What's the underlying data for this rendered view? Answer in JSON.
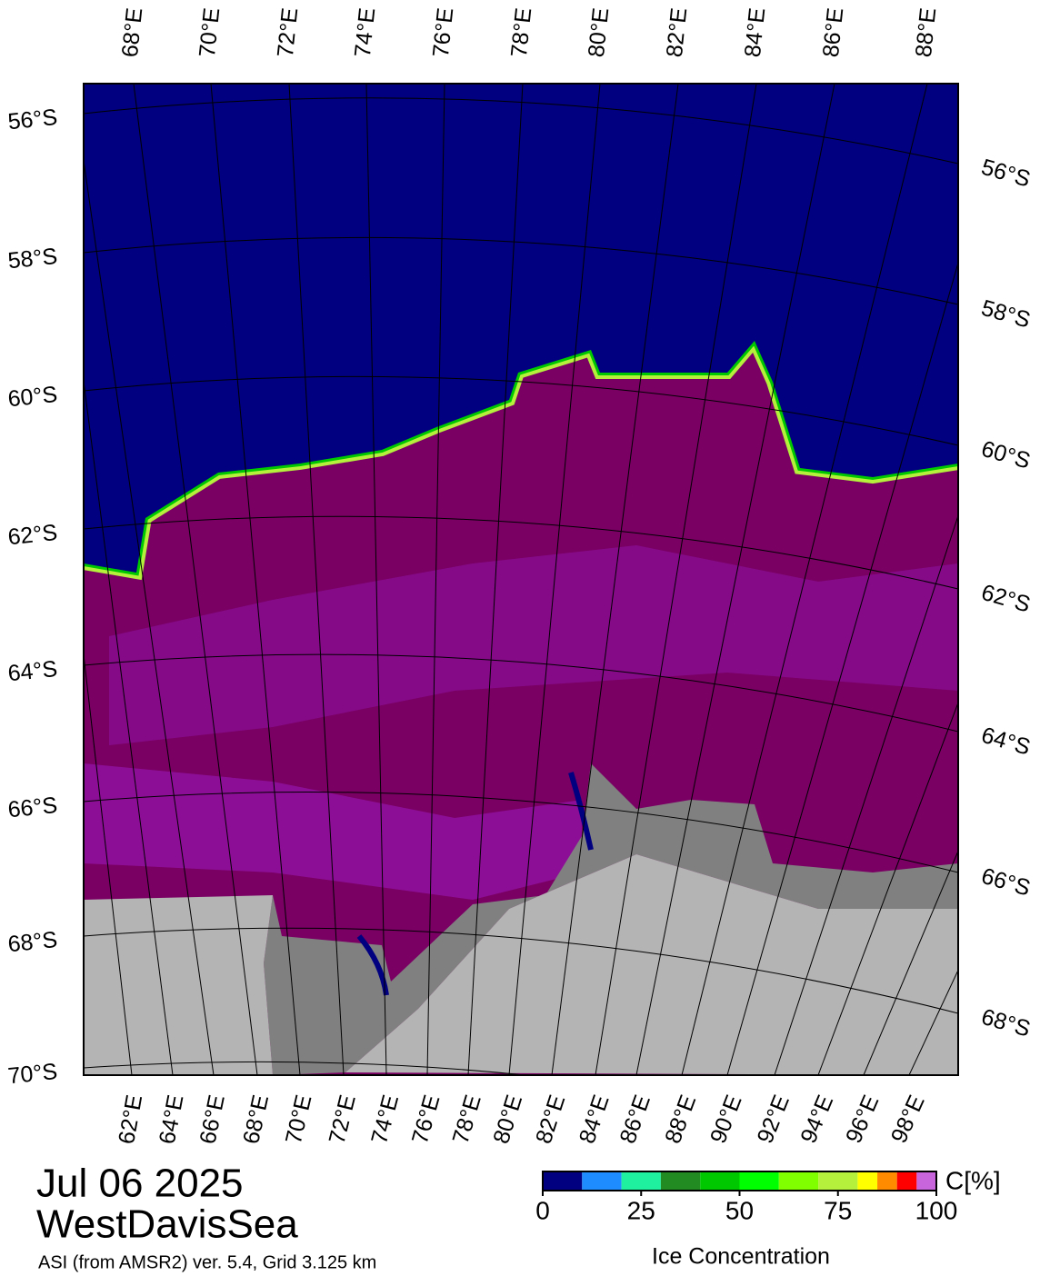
{
  "top_lon_labels": [
    "68°E",
    "70°E",
    "72°E",
    "74°E",
    "76°E",
    "78°E",
    "80°E",
    "82°E",
    "84°E",
    "86°E",
    "88°E"
  ],
  "bottom_lon_labels": [
    "62°E",
    "64°E",
    "66°E",
    "68°E",
    "70°E",
    "72°E",
    "74°E",
    "76°E",
    "78°E",
    "80°E",
    "82°E",
    "84°E",
    "86°E",
    "88°E",
    "90°E",
    "92°E",
    "94°E",
    "96°E",
    "98°E"
  ],
  "left_lat_labels": [
    "56°S",
    "58°S",
    "60°S",
    "62°S",
    "64°S",
    "66°S",
    "68°S",
    "70°S"
  ],
  "right_lat_labels": [
    "56°S",
    "58°S",
    "60°S",
    "62°S",
    "64°S",
    "66°S",
    "68°S"
  ],
  "date": "Jul 06 2025",
  "region": "WestDavisSea",
  "source": "ASI (from AMSR2) ver. 5.4,  Grid 3.125 km",
  "colorbar": {
    "bounds": [
      0,
      10,
      20,
      30,
      40,
      50,
      60,
      70,
      80,
      85,
      90,
      95,
      100
    ],
    "colors": [
      "#000080",
      "#1e8cff",
      "#1ef0a0",
      "#228b22",
      "#00c800",
      "#00ff00",
      "#7fff00",
      "#b4f03c",
      "#ffff00",
      "#ff8c00",
      "#ff0000",
      "#c864dc",
      "#9600c8"
    ],
    "ticks": [
      0,
      25,
      50,
      75,
      100
    ],
    "label": "Ice Concentration",
    "unit": "C[%]"
  }
}
